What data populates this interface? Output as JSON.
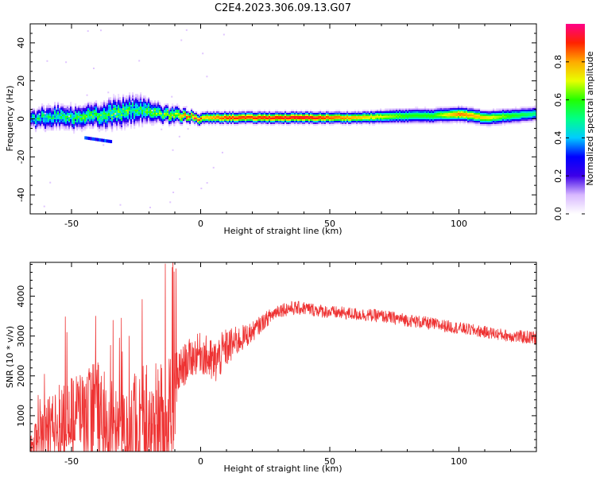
{
  "title": "C2E4.2023.306.09.13.G07",
  "chart_data": [
    {
      "type": "heatmap",
      "xlabel": "Height of straight line (km)",
      "ylabel": "Frequency (Hz)",
      "xlim": [
        -66,
        130
      ],
      "ylim": [
        -50,
        50
      ],
      "xticks": [
        -50,
        0,
        50,
        100
      ],
      "yticks": [
        -40,
        -20,
        0,
        20,
        40
      ],
      "colorbar": {
        "label": "Normalized spectral amplitude",
        "range": [
          0.0,
          1.0
        ],
        "ticks": [
          0.0,
          0.2,
          0.4,
          0.6,
          0.8
        ],
        "tick_labels": [
          "0.0",
          "0.2",
          "0.4",
          "0.6",
          "0.8"
        ],
        "colors": [
          "#ffffff",
          "#d8b8ff",
          "#3c00e8",
          "#0000ff",
          "#00ccff",
          "#00ff88",
          "#22ff00",
          "#e8ff00",
          "#ffaa00",
          "#ff2200",
          "#ff0088"
        ]
      },
      "ridge": {
        "x": [
          -66,
          -60,
          -55,
          -50,
          -45,
          -40,
          -35,
          -30,
          -25,
          -20,
          -15,
          -10,
          -5,
          0,
          10,
          20,
          40,
          60,
          80,
          90,
          100,
          110,
          120,
          130
        ],
        "freq": [
          0,
          1,
          2,
          1,
          2,
          2,
          3,
          4,
          5,
          5,
          3,
          2,
          2,
          1,
          1,
          1,
          1,
          1,
          2,
          2,
          3,
          1,
          2,
          3
        ],
        "amplitude": [
          0.45,
          0.5,
          0.5,
          0.5,
          0.55,
          0.55,
          0.55,
          0.55,
          0.5,
          0.55,
          0.6,
          0.65,
          0.85,
          0.75,
          0.9,
          0.9,
          0.95,
          0.8,
          0.6,
          0.6,
          0.85,
          0.75,
          0.6,
          0.5
        ],
        "width_hz": [
          3,
          4,
          4,
          4,
          4,
          4,
          5,
          5,
          5,
          4,
          3,
          3,
          2,
          2,
          2,
          2,
          2,
          2,
          2.5,
          2.5,
          2.5,
          2.5,
          2.5,
          2.5
        ]
      },
      "secondary_features": [
        {
          "x": [
            -45,
            -40,
            -35
          ],
          "freq": [
            -10,
            -11,
            -12
          ],
          "amplitude": 0.3
        }
      ]
    },
    {
      "type": "line",
      "xlabel": "Height of straight line (km)",
      "ylabel": "SNR (10 * v/v)",
      "xlim": [
        -66,
        130
      ],
      "ylim": [
        100,
        4850
      ],
      "xticks": [
        -50,
        0,
        50,
        100
      ],
      "yticks": [
        1000,
        2000,
        3000,
        4000
      ],
      "color": "#ee3333",
      "series": [
        {
          "name": "SNR",
          "x": [
            -66,
            -60,
            -55,
            -50,
            -45,
            -40,
            -35,
            -30,
            -25,
            -20,
            -15,
            -10,
            -9,
            -5,
            0,
            5,
            10,
            15,
            20,
            25,
            30,
            35,
            40,
            50,
            60,
            70,
            80,
            90,
            100,
            110,
            120,
            130
          ],
          "mean": [
            400,
            800,
            1000,
            1100,
            1200,
            1300,
            900,
            700,
            900,
            1000,
            900,
            1200,
            2000,
            2400,
            2600,
            2300,
            2700,
            2900,
            3100,
            3400,
            3650,
            3700,
            3700,
            3600,
            3550,
            3500,
            3400,
            3300,
            3200,
            3100,
            3000,
            2950
          ],
          "noise": [
            300,
            600,
            800,
            900,
            1000,
            1100,
            1000,
            900,
            1300,
            1500,
            1400,
            1600,
            600,
            500,
            500,
            600,
            500,
            350,
            250,
            200,
            180,
            180,
            170,
            160,
            160,
            160,
            160,
            160,
            150,
            150,
            150,
            180
          ]
        }
      ]
    }
  ]
}
